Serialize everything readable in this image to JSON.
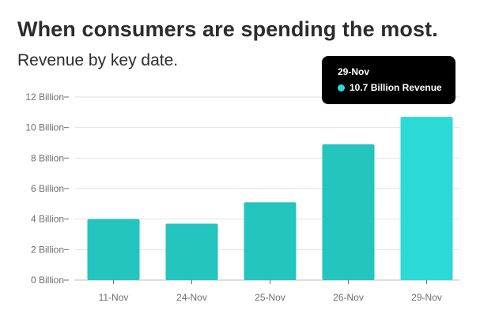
{
  "title": "When consumers are spending the most.",
  "subtitle": "Revenue by key date.",
  "colors": {
    "bar": "#24c4bf",
    "bar_highlight": "#2bdad4",
    "gridline": "#e2e2e2",
    "baseline": "#bdbdbd",
    "tick_text": "#6e6e6e",
    "tooltip_bg": "#000000"
  },
  "tooltip": {
    "title": "29-Nov",
    "value_text": "10.7 Billion Revenue",
    "dot_color": "#2bdad4"
  },
  "chart_data": {
    "type": "bar",
    "title": "When consumers are spending the most.",
    "subtitle": "Revenue by key date.",
    "categories": [
      "11-Nov",
      "24-Nov",
      "25-Nov",
      "26-Nov",
      "29-Nov"
    ],
    "values": [
      4.0,
      3.7,
      5.1,
      8.9,
      10.7
    ],
    "highlighted_category": "29-Nov",
    "y_ticks": [
      0,
      2,
      4,
      6,
      8,
      10,
      12
    ],
    "y_tick_labels": [
      "0 Billion",
      "2 Billion",
      "4 Billion",
      "6 Billion",
      "8 Billion",
      "10 Billion",
      "12 Billion"
    ],
    "ylim": [
      0,
      12
    ],
    "grid": true,
    "legend": "none"
  }
}
